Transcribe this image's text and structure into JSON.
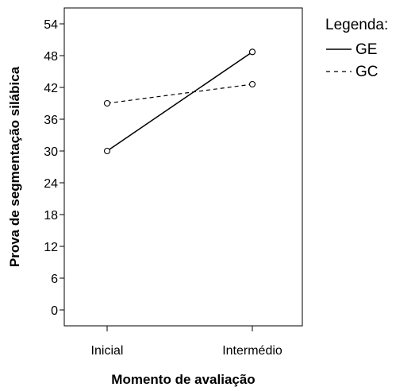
{
  "chart_data": {
    "type": "line",
    "xlabel": "Momento de avaliação",
    "ylabel": "Prova de segmentação silábica",
    "categories": [
      "Inicial",
      "Intermédio"
    ],
    "ylim": [
      -3,
      57
    ],
    "yticks": [
      0,
      6,
      12,
      18,
      24,
      30,
      36,
      42,
      48,
      54
    ],
    "legend": {
      "title": "Legenda:",
      "placement": "right"
    },
    "series": [
      {
        "name": "GE",
        "values": [
          30.0,
          48.7
        ],
        "line_style": "solid",
        "marker": "open-circle",
        "color": "#000000"
      },
      {
        "name": "GC",
        "values": [
          39.0,
          42.6
        ],
        "line_style": "dashed",
        "marker": "open-circle",
        "color": "#000000"
      }
    ]
  }
}
